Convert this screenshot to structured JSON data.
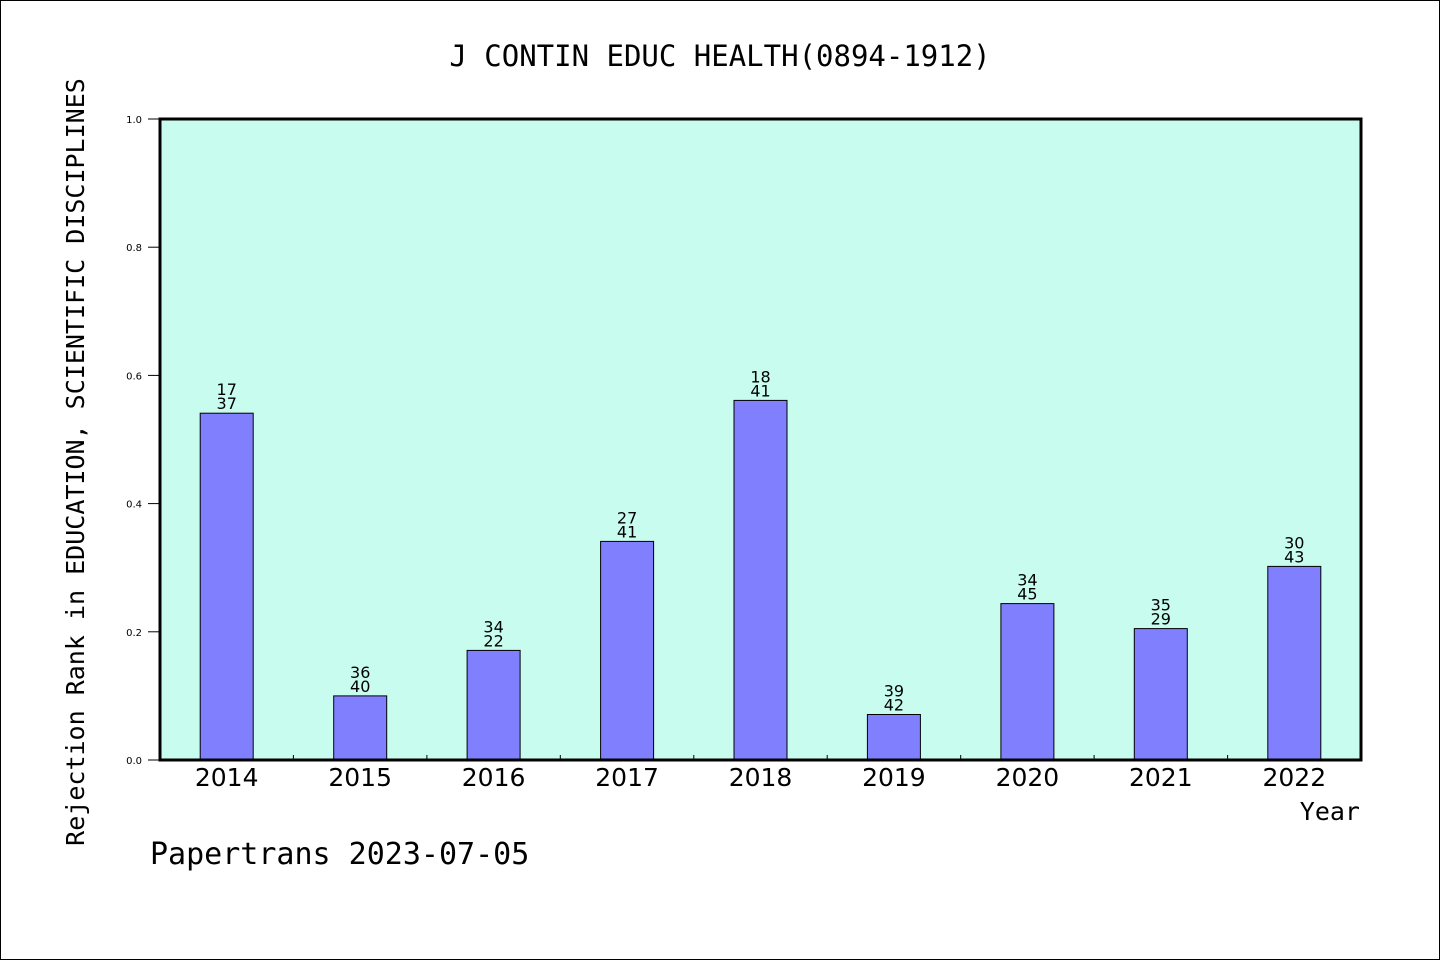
{
  "chart_data": {
    "type": "bar",
    "title": "J CONTIN EDUC HEALTH(0894-1912)",
    "xlabel": "Year",
    "ylabel": "Rejection Rank in EDUCATION, SCIENTIFIC DISCIPLINES",
    "categories": [
      "2014",
      "2015",
      "2016",
      "2017",
      "2018",
      "2019",
      "2020",
      "2021",
      "2022"
    ],
    "values": [
      0.541,
      0.1,
      0.171,
      0.341,
      0.561,
      0.071,
      0.244,
      0.205,
      0.302
    ],
    "bar_labels": [
      [
        "17",
        "37"
      ],
      [
        "36",
        "40"
      ],
      [
        "34",
        "22"
      ],
      [
        "27",
        "41"
      ],
      [
        "18",
        "41"
      ],
      [
        "39",
        "42"
      ],
      [
        "34",
        "45"
      ],
      [
        "35",
        "29"
      ],
      [
        "30",
        "43"
      ]
    ],
    "ylim": [
      0,
      1.0
    ],
    "yticks": [
      "0.0",
      "0.2",
      "0.4",
      "0.6",
      "0.8",
      "1.0"
    ],
    "grid": false,
    "legend": "none",
    "colors": {
      "plot_background": "#c8fcee",
      "bar_fill": "#8080ff",
      "bar_stroke": "#000000"
    }
  },
  "footer": {
    "text": "Papertrans 2023-07-05"
  }
}
